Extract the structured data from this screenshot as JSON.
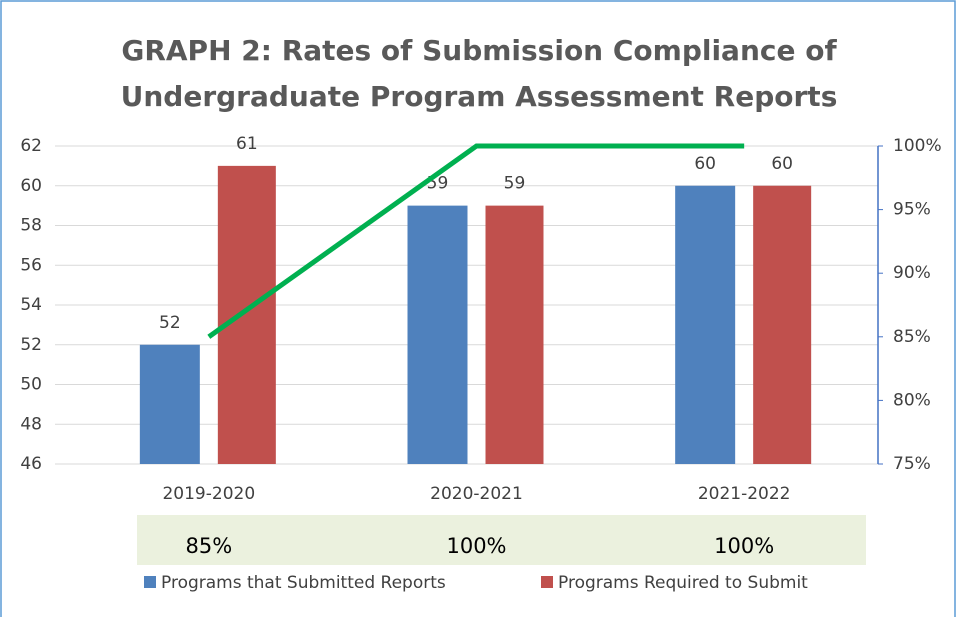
{
  "chart_data": {
    "type": "bar",
    "title": "GRAPH 2: Rates of Submission Compliance of Undergraduate Program Assessment Reports",
    "categories": [
      "2019-2020",
      "2020-2021",
      "2021-2022"
    ],
    "series": [
      {
        "name": "Programs that Submitted Reports",
        "color": "#4f81bd",
        "values": [
          52,
          59,
          60
        ]
      },
      {
        "name": "Programs Required to Submit",
        "color": "#c0504d",
        "values": [
          61,
          59,
          60
        ]
      },
      {
        "type": "line",
        "axis": "y2",
        "color": "#00b050",
        "values": [
          85,
          100,
          100
        ],
        "value_labels": [
          "85%",
          "100%",
          "100%"
        ]
      }
    ],
    "ylim": [
      46,
      62
    ],
    "yticks": [
      46,
      48,
      50,
      52,
      54,
      56,
      58,
      60,
      62
    ],
    "y2lim": [
      75,
      100
    ],
    "y2ticks": [
      {
        "value": 75,
        "label": "75%"
      },
      {
        "value": 80,
        "label": "80%"
      },
      {
        "value": 85,
        "label": "85%"
      },
      {
        "value": 90,
        "label": "90%"
      },
      {
        "value": 95,
        "label": "95%"
      },
      {
        "value": 100,
        "label": "100%"
      }
    ],
    "grid": true,
    "legend": "bottom"
  }
}
